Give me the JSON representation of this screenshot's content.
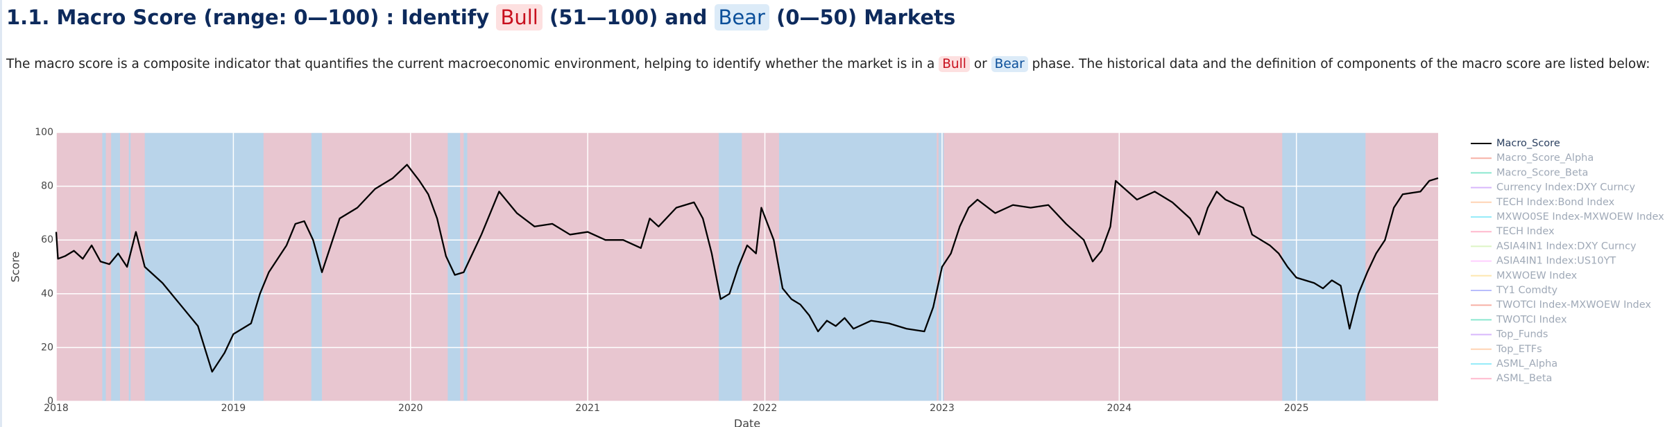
{
  "header": {
    "title_parts": [
      "1.1. Macro Score (range: 0—100) : Identify",
      "Bull",
      "(51—100) and",
      "Bear",
      "(0—50) Markets"
    ]
  },
  "description": {
    "parts": [
      "The macro score is a composite indicator that quantifies the current macroeconomic environment, helping to identify whether the market is in a",
      "Bull",
      "or",
      "Bear",
      "phase. The historical data and the definition of components of the macro score are listed below:"
    ]
  },
  "chart_data": {
    "type": "line",
    "x_label": "Date",
    "y_label": "Score",
    "xlim": [
      2018,
      2025.8
    ],
    "ylim": [
      0,
      100
    ],
    "xticks": [
      2018,
      2019,
      2020,
      2021,
      2022,
      2023,
      2024,
      2025
    ],
    "yticks": [
      0,
      20,
      40,
      60,
      80,
      100
    ],
    "grid": true,
    "bull_color": "#e8c6d0",
    "bear_color": "#b9d4ea",
    "bear_periods": [
      [
        2018.26,
        2018.28
      ],
      [
        2018.31,
        2018.36
      ],
      [
        2018.41,
        2018.42
      ],
      [
        2018.5,
        2019.17
      ],
      [
        2019.44,
        2019.5
      ],
      [
        2020.21,
        2020.28
      ],
      [
        2020.3,
        2020.32
      ],
      [
        2021.74,
        2021.87
      ],
      [
        2022.08,
        2022.97
      ],
      [
        2022.98,
        2023.01
      ],
      [
        2024.92,
        2025.39
      ]
    ],
    "x": [
      2018,
      2018.01,
      2018.05,
      2018.1,
      2018.15,
      2018.2,
      2018.25,
      2018.3,
      2018.35,
      2018.4,
      2018.45,
      2018.5,
      2018.55,
      2018.6,
      2018.7,
      2018.8,
      2018.88,
      2018.95,
      2019,
      2019.1,
      2019.15,
      2019.2,
      2019.3,
      2019.35,
      2019.4,
      2019.45,
      2019.5,
      2019.55,
      2019.6,
      2019.7,
      2019.8,
      2019.9,
      2019.98,
      2020.05,
      2020.1,
      2020.15,
      2020.2,
      2020.25,
      2020.3,
      2020.35,
      2020.4,
      2020.45,
      2020.5,
      2020.55,
      2020.6,
      2020.7,
      2020.8,
      2020.9,
      2021,
      2021.1,
      2021.2,
      2021.3,
      2021.35,
      2021.4,
      2021.5,
      2021.6,
      2021.65,
      2021.7,
      2021.75,
      2021.8,
      2021.85,
      2021.9,
      2021.95,
      2021.98,
      2022.05,
      2022.1,
      2022.15,
      2022.2,
      2022.25,
      2022.3,
      2022.35,
      2022.4,
      2022.45,
      2022.5,
      2022.6,
      2022.7,
      2022.8,
      2022.9,
      2022.95,
      2023,
      2023.05,
      2023.1,
      2023.15,
      2023.2,
      2023.3,
      2023.4,
      2023.5,
      2023.6,
      2023.7,
      2023.8,
      2023.85,
      2023.9,
      2023.95,
      2023.98,
      2024.1,
      2024.2,
      2024.3,
      2024.4,
      2024.45,
      2024.5,
      2024.55,
      2024.6,
      2024.7,
      2024.75,
      2024.8,
      2024.85,
      2024.9,
      2024.95,
      2025,
      2025.1,
      2025.15,
      2025.2,
      2025.25,
      2025.3,
      2025.35,
      2025.4,
      2025.45,
      2025.5,
      2025.55,
      2025.6,
      2025.7,
      2025.75,
      2025.8
    ],
    "series": [
      {
        "name": "Macro_Score",
        "color": "#000000",
        "visible": true,
        "values": [
          63,
          53,
          54,
          56,
          53,
          58,
          52,
          51,
          55,
          50,
          63,
          50,
          47,
          44,
          36,
          28,
          11,
          18,
          25,
          29,
          40,
          48,
          58,
          66,
          67,
          60,
          48,
          58,
          68,
          72,
          79,
          83,
          88,
          82,
          77,
          68,
          54,
          47,
          48,
          55,
          62,
          70,
          78,
          74,
          70,
          65,
          66,
          62,
          63,
          60,
          60,
          57,
          68,
          65,
          72,
          74,
          68,
          55,
          38,
          40,
          50,
          58,
          55,
          72,
          60,
          42,
          38,
          36,
          32,
          26,
          30,
          28,
          31,
          27,
          30,
          29,
          27,
          26,
          35,
          50,
          55,
          65,
          72,
          75,
          70,
          73,
          72,
          73,
          66,
          60,
          52,
          56,
          65,
          82,
          75,
          78,
          74,
          68,
          62,
          72,
          78,
          75,
          72,
          62,
          60,
          58,
          55,
          50,
          46,
          44,
          42,
          45,
          43,
          27,
          40,
          48,
          55,
          60,
          72,
          77,
          78,
          82,
          83
        ]
      },
      {
        "name": "Macro_Score_Alpha",
        "color": "#EF553B",
        "visible": false
      },
      {
        "name": "Macro_Score_Beta",
        "color": "#00CC96",
        "visible": false
      },
      {
        "name": "Currency Index:DXY Curncy",
        "color": "#AB63FA",
        "visible": false
      },
      {
        "name": "TECH Index:Bond Index",
        "color": "#FFA15A",
        "visible": false
      },
      {
        "name": "MXWO0SE Index-MXWOEW Index",
        "color": "#19D3F3",
        "visible": false
      },
      {
        "name": "TECH Index",
        "color": "#FF6692",
        "visible": false
      },
      {
        "name": "ASIA4IN1 Index:DXY Curncy",
        "color": "#B6E880",
        "visible": false
      },
      {
        "name": "ASIA4IN1 Index:US10YT",
        "color": "#FF97FF",
        "visible": false
      },
      {
        "name": "MXWOEW Index",
        "color": "#FECB52",
        "visible": false
      },
      {
        "name": "TY1 Comdty",
        "color": "#636EFA",
        "visible": false
      },
      {
        "name": "TWOTCI Index-MXWOEW Index",
        "color": "#EF553B",
        "visible": false
      },
      {
        "name": "TWOTCI Index",
        "color": "#00CC96",
        "visible": false
      },
      {
        "name": "Top_Funds",
        "color": "#AB63FA",
        "visible": false
      },
      {
        "name": "Top_ETFs",
        "color": "#FFA15A",
        "visible": false
      },
      {
        "name": "ASML_Alpha",
        "color": "#19D3F3",
        "visible": false
      },
      {
        "name": "ASML_Beta",
        "color": "#FF6692",
        "visible": false
      }
    ]
  }
}
